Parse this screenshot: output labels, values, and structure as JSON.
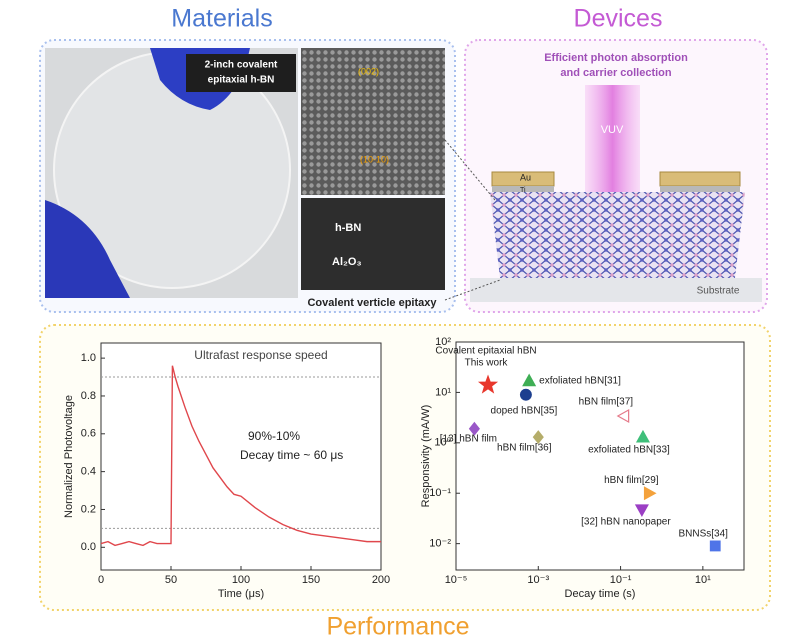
{
  "materials": {
    "title": "Materials",
    "wafer_label_1": "2-inch covalent",
    "wafer_label_2": "epitaxial h-BN",
    "tem_plane_1": "(002)",
    "tem_plane_2": "(10-10)",
    "layer_top": "h-BN",
    "layer_bottom": "Al₂O₃",
    "caption": "Covalent verticle epitaxy"
  },
  "devices": {
    "title": "Devices",
    "subtitle_1": "Efficient photon absorption",
    "subtitle_2": "and carrier collection",
    "light": "VUV",
    "electrode_top": "Au",
    "electrode_bottom": "Ti",
    "substrate": "Substrate"
  },
  "performance": {
    "title": "Performance"
  },
  "chart_data": [
    {
      "type": "line",
      "title": "Ultrafast response speed",
      "annotations": [
        "90%-10%",
        "Decay time ~ 60 μs"
      ],
      "x_label": "Time (μs)",
      "y_label": "Normalized Photovoltage",
      "x": [
        0,
        5,
        10,
        15,
        20,
        25,
        30,
        35,
        40,
        45,
        50,
        51,
        53,
        55,
        60,
        65,
        70,
        75,
        80,
        85,
        90,
        95,
        100,
        110,
        120,
        130,
        140,
        150,
        160,
        170,
        180,
        190,
        200
      ],
      "series": [
        {
          "name": "Photovoltage",
          "color": "#e0474c",
          "values": [
            0.02,
            0.03,
            0.01,
            0.02,
            0.03,
            0.02,
            0.01,
            0.03,
            0.02,
            0.02,
            0.02,
            0.96,
            0.9,
            0.85,
            0.74,
            0.64,
            0.56,
            0.49,
            0.42,
            0.37,
            0.32,
            0.28,
            0.27,
            0.21,
            0.16,
            0.12,
            0.09,
            0.07,
            0.06,
            0.05,
            0.04,
            0.03,
            0.03
          ]
        }
      ],
      "reference_lines": [
        0.9,
        0.1
      ],
      "xlim": [
        0,
        200
      ],
      "xticks": [
        0,
        50,
        100,
        150,
        200
      ],
      "ylim": [
        -0.12,
        1.08
      ],
      "yticks": [
        {
          "value": 0,
          "label": "0.0"
        },
        0.2,
        0.4,
        0.6,
        0.8,
        {
          "value": 1,
          "label": "1.0"
        }
      ]
    },
    {
      "type": "scatter",
      "x_label": "Decay time (s)",
      "y_label": "Responsivity (mA/W)",
      "xscale": "log",
      "yscale": "log",
      "annotations": [
        "Covalent epitaxial hBN"
      ],
      "series": [
        {
          "name": "This work",
          "color": "#e8372c",
          "marker": "star",
          "x": [
            6e-05
          ],
          "values": [
            14
          ]
        },
        {
          "name": "exfoliated hBN[31]",
          "color": "#3fae55",
          "marker": "triangle-up",
          "x": [
            0.0006
          ],
          "values": [
            17
          ]
        },
        {
          "name": "doped hBN[35]",
          "color": "#1d3f8f",
          "marker": "circle",
          "x": [
            0.0005
          ],
          "values": [
            9
          ]
        },
        {
          "name": "hBN film[37]",
          "color": "#e57a8a",
          "marker": "triangle-left",
          "x": [
            0.12
          ],
          "values": [
            3.4
          ]
        },
        {
          "name": "[13] hBN film",
          "color": "#9a58c8",
          "marker": "diamond",
          "x": [
            2.8e-05
          ],
          "values": [
            1.9
          ]
        },
        {
          "name": "hBN film[36]",
          "color": "#b5ad6a",
          "marker": "diamond",
          "x": [
            0.001
          ],
          "values": [
            1.3
          ]
        },
        {
          "name": "exfoliated hBN[33]",
          "color": "#3fbf7a",
          "marker": "triangle-up",
          "x": [
            0.35
          ],
          "values": [
            1.3
          ]
        },
        {
          "name": "hBN film[29]",
          "color": "#f4a23c",
          "marker": "triangle-right",
          "x": [
            0.5
          ],
          "values": [
            0.1
          ]
        },
        {
          "name": "[32] hBN nanopaper",
          "color": "#9b3fc4",
          "marker": "triangle-down",
          "x": [
            0.33
          ],
          "values": [
            0.047
          ]
        },
        {
          "name": "BNNSs[34]",
          "color": "#4f74e8",
          "marker": "square",
          "x": [
            20
          ],
          "values": [
            0.009
          ]
        }
      ],
      "xlim": [
        1e-05,
        100
      ],
      "xticks": [
        {
          "value": 1e-05,
          "label": "10⁻⁵"
        },
        {
          "value": 0.001,
          "label": "10⁻³"
        },
        {
          "value": 0.1,
          "label": "10⁻¹"
        },
        {
          "value": 10,
          "label": "10¹"
        }
      ],
      "ylim": [
        0.003,
        100
      ],
      "yticks": [
        {
          "value": 0.01,
          "label": "10⁻²"
        },
        {
          "value": 0.1,
          "label": "10⁻¹"
        },
        {
          "value": 1,
          "label": "10⁰"
        },
        {
          "value": 10,
          "label": "10¹"
        },
        {
          "value": 100,
          "label": "10²"
        }
      ]
    }
  ]
}
